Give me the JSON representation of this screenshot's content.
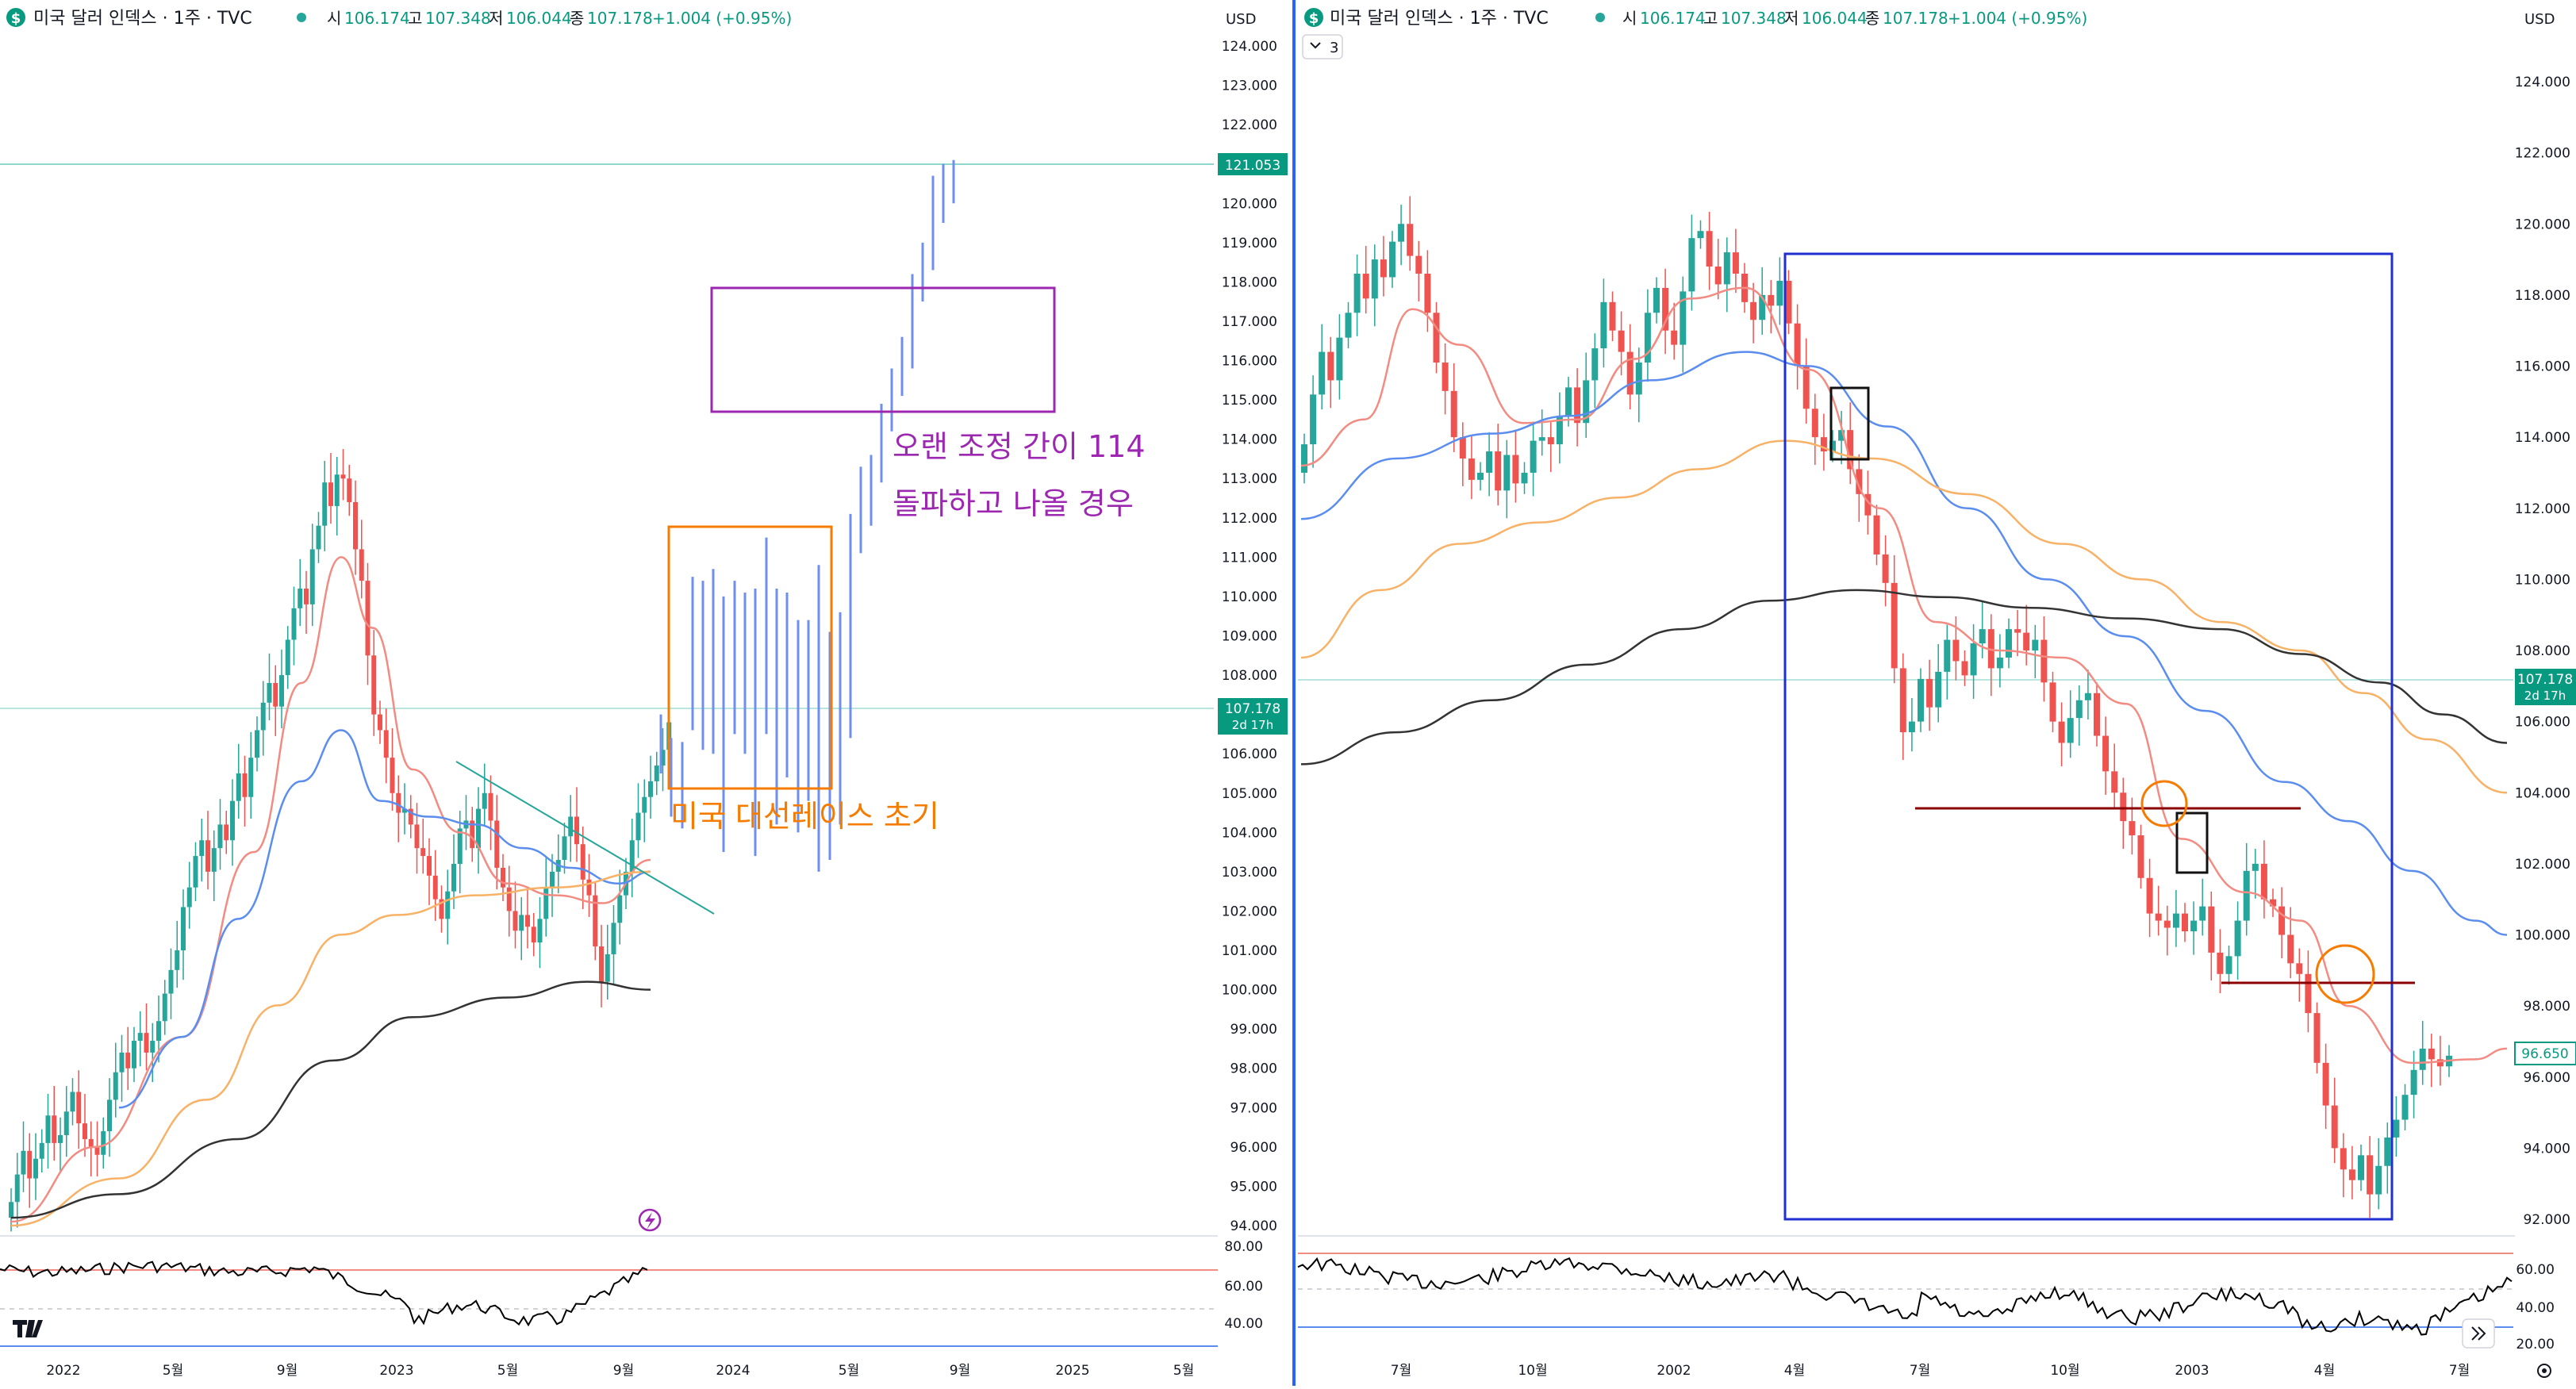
{
  "left": {
    "header": {
      "symbol": "$",
      "title": "미국 달러 인덱스 · 1주 · TVC",
      "o_label": "시",
      "o": "106.174",
      "h_label": "고",
      "h": "107.348",
      "l_label": "저",
      "l": "106.044",
      "c_label": "종",
      "c": "107.178",
      "chg": "+1.004 (+0.95%)"
    },
    "currency": "USD",
    "price_ticks": [
      "124.000",
      "123.000",
      "122.000",
      "121.000",
      "120.000",
      "119.000",
      "118.000",
      "117.000",
      "116.000",
      "115.000",
      "114.000",
      "113.000",
      "112.000",
      "111.000",
      "110.000",
      "109.000",
      "108.000",
      "107.000",
      "106.000",
      "105.000",
      "104.000",
      "103.000",
      "102.000",
      "101.000",
      "100.000",
      "99.000",
      "98.000",
      "97.000",
      "96.000",
      "95.000",
      "94.000"
    ],
    "tag_high": "121.053",
    "tag_last": "107.178",
    "tag_last_sub": "2d 17h",
    "annotation_purple_1": "오랜 조정 간이 114",
    "annotation_purple_2": "돌파하고 나올 경우",
    "annotation_orange": "미국 대선레이스 초기",
    "rsi_ticks": [
      "80.00",
      "60.00",
      "40.00"
    ],
    "time_ticks": [
      "2022",
      "5월",
      "9월",
      "2023",
      "5월",
      "9월",
      "2024",
      "5월",
      "9월",
      "2025",
      "5월"
    ]
  },
  "right": {
    "header": {
      "symbol": "$",
      "title": "미국 달러 인덱스 · 1주 · TVC",
      "o_label": "시",
      "o": "106.174",
      "h_label": "고",
      "h": "107.348",
      "l_label": "저",
      "l": "106.044",
      "c_label": "종",
      "c": "107.178",
      "chg": "+1.004 (+0.95%)"
    },
    "indicator_toggle": "3",
    "currency": "USD",
    "price_ticks": [
      "124.000",
      "122.000",
      "120.000",
      "118.000",
      "116.000",
      "114.000",
      "112.000",
      "110.000",
      "108.000",
      "106.000",
      "104.000",
      "102.000",
      "100.000",
      "98.000",
      "96.000",
      "94.000",
      "92.000"
    ],
    "tag_last": "107.178",
    "tag_last_sub": "2d 17h",
    "tag_current": "96.650",
    "rsi_ticks": [
      "60.00",
      "40.00",
      "20.00"
    ],
    "time_ticks": [
      "7월",
      "10월",
      "2002",
      "4월",
      "7월",
      "10월",
      "2003",
      "4월",
      "7월"
    ]
  },
  "colors": {
    "bull": "#26a69a",
    "bear": "#ef5350",
    "bar_blue": "#6f8ff0",
    "ma_red": "#f28b82",
    "ma_blue": "#5b8def",
    "ma_orange": "#f7b267",
    "ma_black": "#333333",
    "box_purple": "#9c27b0",
    "box_orange": "#f57c00",
    "box_blue": "#1f2fd1",
    "hline_dark_red": "#8b0000",
    "tag_green": "#089981"
  },
  "chart_data": [
    {
      "type": "candlestick",
      "title": "미국 달러 인덱스 · 1주 · TVC",
      "period": "2022–2024 with projected path",
      "ylim": [
        94,
        124
      ],
      "series": [
        {
          "name": "price_close_approx",
          "x": [
            "2022-01",
            "2022-05",
            "2022-09",
            "2023-01",
            "2023-05",
            "2023-09",
            "2024-01",
            "2024-05"
          ],
          "values": [
            95.5,
            102.5,
            112.0,
            103.5,
            101.5,
            106.0,
            103.3,
            105.5
          ]
        },
        {
          "name": "projected_path",
          "x": [
            "2024-02",
            "2024-05",
            "2024-07",
            "2024-08"
          ],
          "values": [
            106.5,
            110.0,
            117.0,
            121.0
          ]
        }
      ],
      "annotations": [
        "121.053",
        "오랜 조정 간이 114 돌파하고 나올 경우",
        "미국 대선레이스 초기"
      ]
    },
    {
      "type": "candlestick",
      "title": "미국 달러 인덱스 · 1주 · TVC",
      "period": "2001–2003",
      "ylim": [
        92,
        124
      ],
      "series": [
        {
          "name": "price_close_approx",
          "x": [
            "2001-07",
            "2001-10",
            "2002-01",
            "2002-04",
            "2002-07",
            "2002-10",
            "2003-01",
            "2003-04",
            "2003-07"
          ],
          "values": [
            119.5,
            114.0,
            119.5,
            115.5,
            106.5,
            107.5,
            102.0,
            98.5,
            95.0
          ]
        }
      ],
      "annotations": [
        "96.650"
      ]
    }
  ]
}
